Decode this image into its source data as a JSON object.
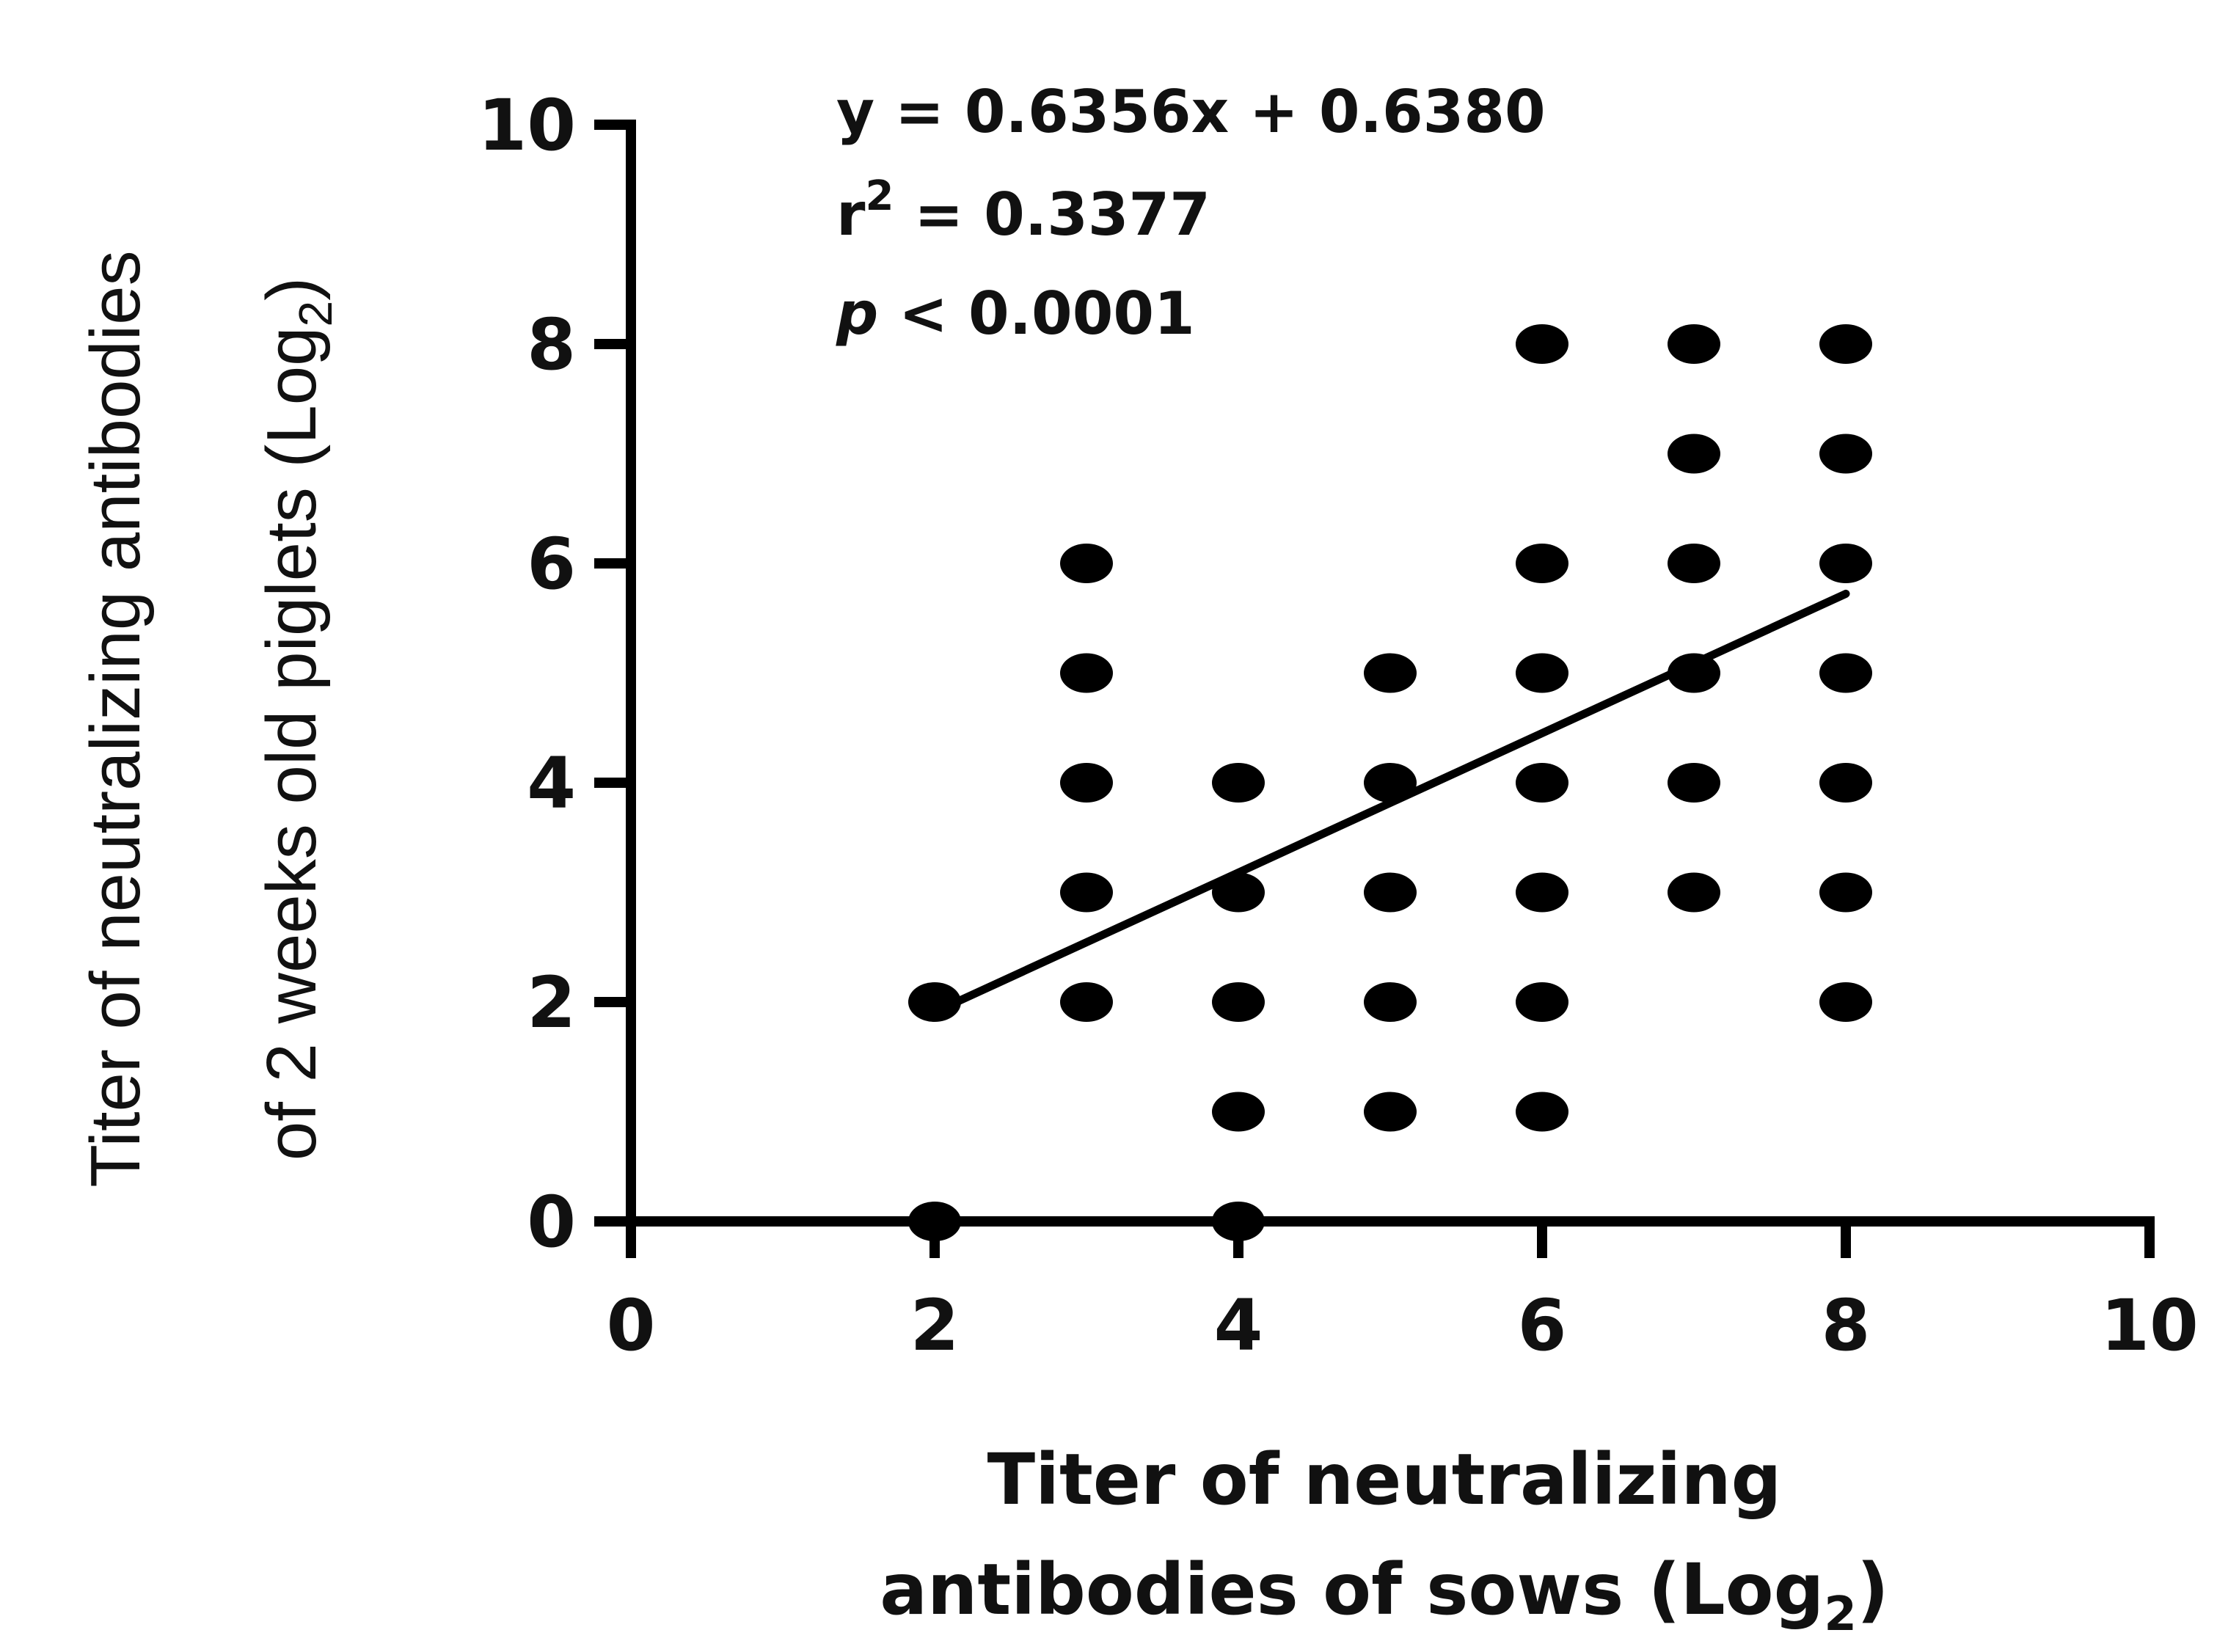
{
  "chart_data": {
    "type": "scatter",
    "xlabel_line1": "Titer of neutralizing",
    "xlabel_line2": "antibodies of sows (Log",
    "xlabel_sub": "2",
    "xlabel_end": ")",
    "ylabel_line1": "Titer of neutralizing antibodies",
    "ylabel_line2": "of 2 weeks old piglets (Log",
    "ylabel_sub": "2",
    "ylabel_end": ")",
    "xlim": [
      0,
      10
    ],
    "ylim": [
      0,
      10
    ],
    "x_ticks": [
      "0",
      "2",
      "4",
      "6",
      "8",
      "10"
    ],
    "y_ticks": [
      "0",
      "2",
      "4",
      "6",
      "8",
      "10"
    ],
    "points": [
      [
        2,
        0
      ],
      [
        2,
        2
      ],
      [
        3,
        2
      ],
      [
        3,
        3
      ],
      [
        3,
        4
      ],
      [
        3,
        5
      ],
      [
        3,
        6
      ],
      [
        4,
        0
      ],
      [
        4,
        1
      ],
      [
        4,
        2
      ],
      [
        4,
        3
      ],
      [
        4,
        4
      ],
      [
        5,
        1
      ],
      [
        5,
        2
      ],
      [
        5,
        3
      ],
      [
        5,
        4
      ],
      [
        5,
        5
      ],
      [
        6,
        1
      ],
      [
        6,
        2
      ],
      [
        6,
        3
      ],
      [
        6,
        4
      ],
      [
        6,
        5
      ],
      [
        6,
        6
      ],
      [
        6,
        8
      ],
      [
        7,
        3
      ],
      [
        7,
        4
      ],
      [
        7,
        5
      ],
      [
        7,
        6
      ],
      [
        7,
        7
      ],
      [
        7,
        8
      ],
      [
        8,
        2
      ],
      [
        8,
        3
      ],
      [
        8,
        4
      ],
      [
        8,
        5
      ],
      [
        8,
        6
      ],
      [
        8,
        7
      ],
      [
        8,
        8
      ]
    ],
    "regression": {
      "slope": 0.6356,
      "intercept": 0.638,
      "x_range": [
        2,
        8
      ]
    },
    "annotations": {
      "equation": "y = 0.6356x + 0.6380",
      "r2_prefix": "r",
      "r2_sup": "2",
      "r2_value": " = 0.3377",
      "p_symbol": "p",
      "p_value": " < 0.0001"
    },
    "grid": false,
    "legend": "none"
  }
}
